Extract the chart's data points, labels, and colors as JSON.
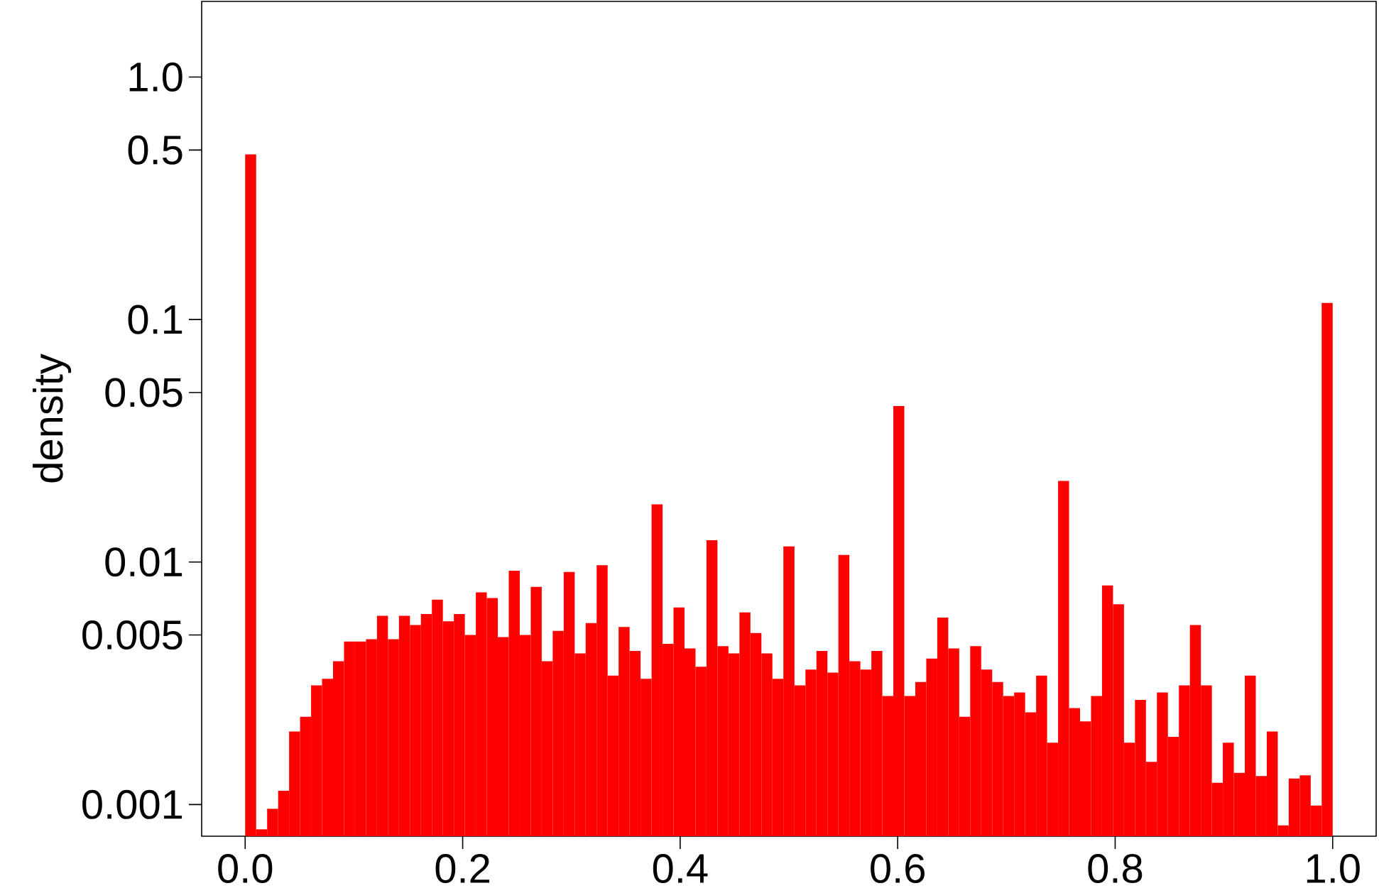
{
  "chart_data": {
    "type": "histogram",
    "ylabel": "density",
    "color": "#ff0000",
    "log": true,
    "bins": [
      0,
      0.0101,
      0.0202,
      0.0303,
      0.0404,
      0.0505,
      0.0606,
      0.0707,
      0.0808,
      0.0909,
      0.101,
      0.1111,
      0.1212,
      0.1313,
      0.1414,
      0.1515,
      0.1616,
      0.1717,
      0.1818,
      0.1919,
      0.202,
      0.2121,
      0.2222,
      0.2323,
      0.2424,
      0.2525,
      0.2626,
      0.2727,
      0.2828,
      0.2929,
      0.303,
      0.3131,
      0.3232,
      0.3333,
      0.3434,
      0.3535,
      0.3636,
      0.3737,
      0.3838,
      0.3939,
      0.404,
      0.4141,
      0.4242,
      0.4343,
      0.4444,
      0.4545,
      0.4646,
      0.4747,
      0.4848,
      0.4949,
      0.5051,
      0.5152,
      0.5253,
      0.5354,
      0.5455,
      0.5556,
      0.5657,
      0.5758,
      0.5859,
      0.596,
      0.6061,
      0.6162,
      0.6263,
      0.6364,
      0.6465,
      0.6566,
      0.6667,
      0.6768,
      0.6869,
      0.697,
      0.7071,
      0.7172,
      0.7273,
      0.7374,
      0.7475,
      0.7576,
      0.7677,
      0.7778,
      0.7879,
      0.798,
      0.8081,
      0.8182,
      0.8283,
      0.8384,
      0.8485,
      0.8586,
      0.8687,
      0.8788,
      0.8889,
      0.899,
      0.9091,
      0.9192,
      0.9293,
      0.9394,
      0.9495,
      0.9596,
      0.9697,
      0.9798,
      0.9899,
      1
    ],
    "values": [
      0.48,
      0.00079,
      0.00096,
      0.00114,
      0.002,
      0.0023,
      0.0031,
      0.0033,
      0.0039,
      0.0047,
      0.0047,
      0.0048,
      0.006,
      0.0048,
      0.006,
      0.0055,
      0.0061,
      0.007,
      0.0057,
      0.0061,
      0.005,
      0.0075,
      0.0071,
      0.0049,
      0.0092,
      0.005,
      0.0079,
      0.0039,
      0.0052,
      0.0091,
      0.0042,
      0.0056,
      0.0097,
      0.0034,
      0.0054,
      0.0043,
      0.0033,
      0.0173,
      0.0046,
      0.0065,
      0.0044,
      0.0037,
      0.0123,
      0.0045,
      0.0042,
      0.0062,
      0.0051,
      0.0042,
      0.0033,
      0.0116,
      0.0031,
      0.0036,
      0.0043,
      0.0035,
      0.0107,
      0.0039,
      0.0036,
      0.0043,
      0.0028,
      0.044,
      0.0028,
      0.0032,
      0.004,
      0.0059,
      0.0044,
      0.0023,
      0.0045,
      0.0036,
      0.0032,
      0.0028,
      0.0029,
      0.0024,
      0.0034,
      0.0018,
      0.0216,
      0.0025,
      0.0022,
      0.0028,
      0.008,
      0.0067,
      0.0018,
      0.0027,
      0.0015,
      0.0029,
      0.0019,
      0.0031,
      0.0055,
      0.0031,
      0.00123,
      0.0018,
      0.00135,
      0.0034,
      0.00131,
      0.002,
      0.00082,
      0.00128,
      0.00132,
      0.00099,
      0.117
    ],
    "xlim": [
      -0.04,
      1.04
    ],
    "ylim": [
      0.00074,
      2.05
    ],
    "xticks": [
      {
        "value": 0,
        "label": "0.0"
      },
      0.2,
      0.4,
      0.6,
      0.8,
      {
        "value": 1,
        "label": "1.0"
      }
    ],
    "yticks": [
      0.001,
      0.005,
      0.01,
      0.05,
      0.1,
      0.5,
      {
        "value": 1,
        "label": "1.0"
      }
    ]
  }
}
